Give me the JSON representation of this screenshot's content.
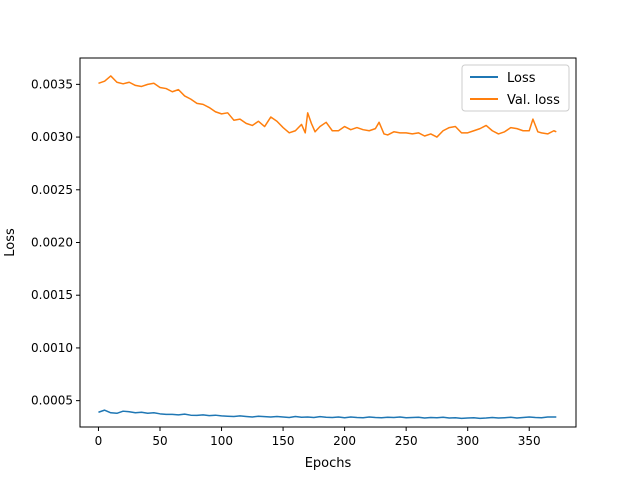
{
  "chart_data": {
    "type": "line",
    "title": "",
    "xlabel": "Epochs",
    "ylabel": "Loss",
    "xlim": [
      -15,
      388
    ],
    "ylim": [
      0.00025,
      0.00375
    ],
    "xticks": [
      0,
      50,
      100,
      150,
      200,
      250,
      300,
      350
    ],
    "yticks": [
      0.0005,
      0.001,
      0.0015,
      0.002,
      0.0025,
      0.003,
      0.0035
    ],
    "ytick_labels": [
      "0.0005",
      "0.0010",
      "0.0015",
      "0.0020",
      "0.0025",
      "0.0030",
      "0.0035"
    ],
    "grid": false,
    "legend": "top-right",
    "series": [
      {
        "name": "Loss",
        "color": "#1f77b4",
        "points": [
          [
            0,
            0.00039
          ],
          [
            5,
            0.00041
          ],
          [
            10,
            0.000385
          ],
          [
            15,
            0.00038
          ],
          [
            20,
            0.0004
          ],
          [
            25,
            0.000395
          ],
          [
            30,
            0.000385
          ],
          [
            35,
            0.00039
          ],
          [
            40,
            0.00038
          ],
          [
            45,
            0.000385
          ],
          [
            50,
            0.000375
          ],
          [
            55,
            0.00037
          ],
          [
            60,
            0.00037
          ],
          [
            65,
            0.000365
          ],
          [
            70,
            0.000372
          ],
          [
            75,
            0.000362
          ],
          [
            80,
            0.00036
          ],
          [
            85,
            0.000365
          ],
          [
            90,
            0.000358
          ],
          [
            95,
            0.000362
          ],
          [
            100,
            0.000355
          ],
          [
            105,
            0.000352
          ],
          [
            110,
            0.00035
          ],
          [
            115,
            0.000355
          ],
          [
            120,
            0.00035
          ],
          [
            125,
            0.000345
          ],
          [
            130,
            0.000352
          ],
          [
            135,
            0.000348
          ],
          [
            140,
            0.000345
          ],
          [
            145,
            0.00035
          ],
          [
            150,
            0.000345
          ],
          [
            155,
            0.00034
          ],
          [
            160,
            0.00035
          ],
          [
            165,
            0.000342
          ],
          [
            170,
            0.000345
          ],
          [
            175,
            0.00034
          ],
          [
            180,
            0.000348
          ],
          [
            185,
            0.000342
          ],
          [
            190,
            0.00034
          ],
          [
            195,
            0.000345
          ],
          [
            200,
            0.000338
          ],
          [
            205,
            0.000345
          ],
          [
            210,
            0.00034
          ],
          [
            215,
            0.000338
          ],
          [
            220,
            0.000345
          ],
          [
            225,
            0.00034
          ],
          [
            230,
            0.000338
          ],
          [
            235,
            0.000342
          ],
          [
            240,
            0.00034
          ],
          [
            245,
            0.000345
          ],
          [
            250,
            0.000338
          ],
          [
            255,
            0.00034
          ],
          [
            260,
            0.000342
          ],
          [
            265,
            0.000335
          ],
          [
            270,
            0.00034
          ],
          [
            275,
            0.000338
          ],
          [
            280,
            0.000342
          ],
          [
            285,
            0.000335
          ],
          [
            290,
            0.000338
          ],
          [
            295,
            0.000332
          ],
          [
            300,
            0.000335
          ],
          [
            305,
            0.000338
          ],
          [
            310,
            0.000332
          ],
          [
            315,
            0.000335
          ],
          [
            320,
            0.00034
          ],
          [
            325,
            0.000335
          ],
          [
            330,
            0.000338
          ],
          [
            335,
            0.000342
          ],
          [
            340,
            0.000335
          ],
          [
            345,
            0.00034
          ],
          [
            350,
            0.000345
          ],
          [
            355,
            0.00034
          ],
          [
            360,
            0.000338
          ],
          [
            365,
            0.000345
          ],
          [
            372,
            0.000345
          ]
        ]
      },
      {
        "name": "Val. loss",
        "color": "#ff7f0e",
        "points": [
          [
            0,
            0.00351
          ],
          [
            5,
            0.00353
          ],
          [
            10,
            0.00358
          ],
          [
            15,
            0.00352
          ],
          [
            20,
            0.003505
          ],
          [
            25,
            0.00352
          ],
          [
            30,
            0.00349
          ],
          [
            35,
            0.00348
          ],
          [
            40,
            0.0035
          ],
          [
            45,
            0.00351
          ],
          [
            50,
            0.00347
          ],
          [
            55,
            0.00346
          ],
          [
            60,
            0.00343
          ],
          [
            65,
            0.00345
          ],
          [
            70,
            0.00339
          ],
          [
            75,
            0.00336
          ],
          [
            80,
            0.00332
          ],
          [
            85,
            0.00331
          ],
          [
            90,
            0.00328
          ],
          [
            95,
            0.00324
          ],
          [
            100,
            0.00322
          ],
          [
            105,
            0.00323
          ],
          [
            110,
            0.00316
          ],
          [
            115,
            0.00317
          ],
          [
            120,
            0.00313
          ],
          [
            125,
            0.00311
          ],
          [
            130,
            0.00315
          ],
          [
            135,
            0.0031
          ],
          [
            140,
            0.00319
          ],
          [
            145,
            0.00315
          ],
          [
            150,
            0.00309
          ],
          [
            155,
            0.00304
          ],
          [
            160,
            0.00306
          ],
          [
            165,
            0.00312
          ],
          [
            168,
            0.00304
          ],
          [
            170,
            0.00323
          ],
          [
            173,
            0.00313
          ],
          [
            176,
            0.00305
          ],
          [
            180,
            0.0031
          ],
          [
            185,
            0.00314
          ],
          [
            190,
            0.00306
          ],
          [
            195,
            0.00306
          ],
          [
            200,
            0.0031
          ],
          [
            205,
            0.00307
          ],
          [
            210,
            0.00309
          ],
          [
            215,
            0.00307
          ],
          [
            220,
            0.00306
          ],
          [
            225,
            0.00308
          ],
          [
            228,
            0.00314
          ],
          [
            232,
            0.00303
          ],
          [
            235,
            0.00302
          ],
          [
            240,
            0.00305
          ],
          [
            245,
            0.00304
          ],
          [
            250,
            0.00304
          ],
          [
            255,
            0.00303
          ],
          [
            260,
            0.00304
          ],
          [
            265,
            0.00301
          ],
          [
            270,
            0.00303
          ],
          [
            275,
            0.003
          ],
          [
            280,
            0.00306
          ],
          [
            285,
            0.00309
          ],
          [
            290,
            0.0031
          ],
          [
            295,
            0.00304
          ],
          [
            300,
            0.00304
          ],
          [
            305,
            0.00306
          ],
          [
            310,
            0.00308
          ],
          [
            315,
            0.00311
          ],
          [
            320,
            0.00306
          ],
          [
            325,
            0.00303
          ],
          [
            330,
            0.00305
          ],
          [
            335,
            0.00309
          ],
          [
            340,
            0.00308
          ],
          [
            345,
            0.00306
          ],
          [
            350,
            0.00306
          ],
          [
            353,
            0.00317
          ],
          [
            357,
            0.00305
          ],
          [
            360,
            0.00304
          ],
          [
            365,
            0.00303
          ],
          [
            370,
            0.00306
          ],
          [
            372,
            0.00305
          ]
        ]
      }
    ]
  }
}
